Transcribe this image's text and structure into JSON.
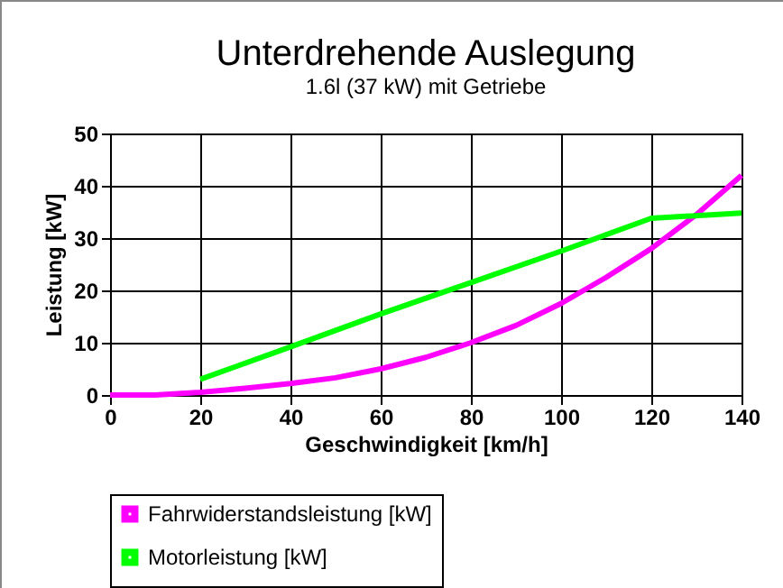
{
  "chart_data": {
    "type": "line",
    "title": "Unterdrehende Auslegung",
    "subtitle": "1.6l (37 kW) mit Getriebe",
    "xlabel": "Geschwindigkeit [km/h]",
    "ylabel": "Leistung [kW]",
    "xlim": [
      0,
      140
    ],
    "xticks": [
      0,
      20,
      40,
      60,
      80,
      100,
      120,
      140
    ],
    "ylim": [
      0,
      50
    ],
    "yticks": [
      0,
      10,
      20,
      30,
      40,
      50
    ],
    "grid": true,
    "legend": "bottom",
    "series": [
      {
        "name": "Fahrwiderstandsleistung [kW]",
        "color": "#ff00ff",
        "x": [
          0,
          10,
          20,
          30,
          40,
          50,
          60,
          70,
          80,
          90,
          100,
          110,
          120,
          130,
          140
        ],
        "values": [
          0,
          0,
          0.5,
          1.3,
          2.2,
          3.3,
          5,
          7.2,
          10,
          13.3,
          17.5,
          22.5,
          28,
          34.5,
          42
        ]
      },
      {
        "name": "Motorleistung [kW]",
        "color": "#00ff00",
        "x": [
          20,
          40,
          60,
          80,
          100,
          120,
          140
        ],
        "values": [
          3,
          9.2,
          15.5,
          21.5,
          27.5,
          33.8,
          34.8
        ]
      }
    ]
  }
}
